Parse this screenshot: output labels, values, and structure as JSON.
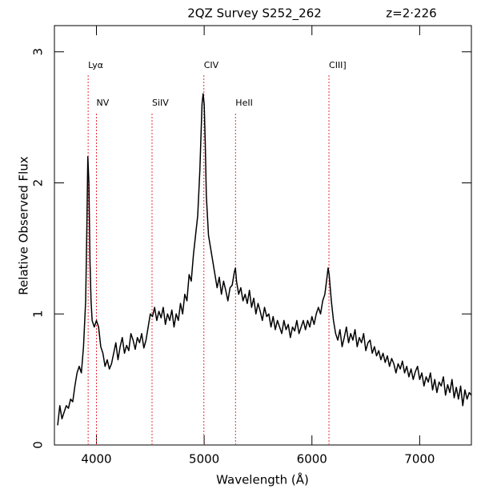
{
  "chart_data": {
    "type": "line",
    "title": "2QZ Survey S252_262",
    "subtitle": "z=2·226",
    "xlabel": "Wavelength (Å)",
    "ylabel": "Relative Observed Flux",
    "color": "#000000",
    "xlim": [
      3610,
      7480
    ],
    "ylim": [
      0,
      3.2
    ],
    "xticks": [
      4000,
      5000,
      6000,
      7000
    ],
    "yticks": [
      0,
      1,
      2,
      3
    ],
    "annotations": [
      {
        "label": "Lyα",
        "x": 3923,
        "row": "upper"
      },
      {
        "label": "NV",
        "x": 4000,
        "row": "lower"
      },
      {
        "label": "SiIV",
        "x": 4516,
        "row": "lower"
      },
      {
        "label": "CIV",
        "x": 4997,
        "row": "upper"
      },
      {
        "label": "HeII",
        "x": 5291,
        "row": "lower"
      },
      {
        "label": "CIII]",
        "x": 6158,
        "row": "upper"
      }
    ],
    "annotation_line_color": "#e8303a",
    "annotation_text_color": "#1010d0",
    "x": [
      3640,
      3660,
      3680,
      3700,
      3720,
      3740,
      3760,
      3780,
      3800,
      3820,
      3840,
      3860,
      3880,
      3900,
      3910,
      3920,
      3930,
      3940,
      3950,
      3960,
      3980,
      4000,
      4020,
      4040,
      4060,
      4080,
      4100,
      4120,
      4140,
      4160,
      4180,
      4200,
      4220,
      4240,
      4260,
      4280,
      4300,
      4320,
      4340,
      4360,
      4380,
      4400,
      4420,
      4440,
      4460,
      4480,
      4500,
      4520,
      4540,
      4560,
      4580,
      4600,
      4620,
      4640,
      4660,
      4680,
      4700,
      4720,
      4740,
      4760,
      4780,
      4800,
      4820,
      4840,
      4860,
      4880,
      4900,
      4920,
      4940,
      4960,
      4980,
      4990,
      5000,
      5010,
      5020,
      5040,
      5060,
      5080,
      5100,
      5120,
      5140,
      5160,
      5180,
      5200,
      5220,
      5240,
      5260,
      5280,
      5290,
      5300,
      5320,
      5340,
      5360,
      5380,
      5400,
      5420,
      5440,
      5460,
      5480,
      5500,
      5520,
      5540,
      5560,
      5580,
      5600,
      5620,
      5640,
      5660,
      5680,
      5700,
      5720,
      5740,
      5760,
      5780,
      5800,
      5820,
      5840,
      5860,
      5880,
      5900,
      5920,
      5940,
      5960,
      5980,
      6000,
      6020,
      6040,
      6060,
      6080,
      6100,
      6120,
      6140,
      6150,
      6160,
      6180,
      6200,
      6220,
      6240,
      6260,
      6280,
      6300,
      6320,
      6340,
      6360,
      6380,
      6400,
      6420,
      6440,
      6460,
      6480,
      6500,
      6520,
      6540,
      6560,
      6580,
      6600,
      6620,
      6640,
      6660,
      6680,
      6700,
      6720,
      6740,
      6760,
      6780,
      6800,
      6820,
      6840,
      6860,
      6880,
      6900,
      6920,
      6940,
      6960,
      6980,
      7000,
      7020,
      7040,
      7060,
      7080,
      7100,
      7120,
      7140,
      7160,
      7180,
      7200,
      7220,
      7240,
      7260,
      7280,
      7300,
      7320,
      7340,
      7360,
      7380,
      7400,
      7420,
      7440,
      7460,
      7480
    ],
    "values": [
      0.15,
      0.3,
      0.2,
      0.25,
      0.3,
      0.28,
      0.35,
      0.33,
      0.45,
      0.55,
      0.6,
      0.55,
      0.75,
      1.1,
      1.6,
      2.2,
      2.0,
      1.4,
      1.1,
      0.95,
      0.9,
      0.95,
      0.9,
      0.75,
      0.7,
      0.6,
      0.65,
      0.58,
      0.62,
      0.7,
      0.78,
      0.65,
      0.75,
      0.82,
      0.7,
      0.76,
      0.72,
      0.85,
      0.8,
      0.73,
      0.82,
      0.78,
      0.85,
      0.74,
      0.8,
      0.9,
      1.0,
      0.98,
      1.05,
      0.95,
      1.02,
      0.97,
      1.05,
      0.92,
      1.0,
      0.95,
      1.03,
      0.9,
      1.0,
      0.95,
      1.08,
      1.0,
      1.15,
      1.1,
      1.3,
      1.25,
      1.45,
      1.6,
      1.75,
      2.1,
      2.6,
      2.68,
      2.6,
      2.3,
      1.9,
      1.6,
      1.5,
      1.4,
      1.3,
      1.2,
      1.28,
      1.15,
      1.25,
      1.18,
      1.1,
      1.2,
      1.22,
      1.32,
      1.35,
      1.25,
      1.15,
      1.2,
      1.1,
      1.15,
      1.08,
      1.18,
      1.05,
      1.12,
      1.0,
      1.08,
      1.02,
      0.95,
      1.05,
      0.98,
      1.0,
      0.9,
      0.98,
      0.88,
      0.95,
      0.9,
      0.85,
      0.95,
      0.88,
      0.92,
      0.82,
      0.9,
      0.87,
      0.95,
      0.85,
      0.9,
      0.95,
      0.88,
      0.95,
      0.9,
      0.98,
      0.92,
      1.0,
      1.05,
      1.0,
      1.1,
      1.15,
      1.28,
      1.35,
      1.3,
      1.1,
      0.95,
      0.85,
      0.8,
      0.88,
      0.75,
      0.82,
      0.9,
      0.78,
      0.85,
      0.8,
      0.88,
      0.75,
      0.82,
      0.78,
      0.85,
      0.72,
      0.78,
      0.8,
      0.7,
      0.75,
      0.68,
      0.72,
      0.65,
      0.7,
      0.63,
      0.68,
      0.6,
      0.66,
      0.62,
      0.55,
      0.62,
      0.58,
      0.64,
      0.55,
      0.6,
      0.52,
      0.58,
      0.5,
      0.56,
      0.6,
      0.5,
      0.55,
      0.45,
      0.52,
      0.48,
      0.55,
      0.42,
      0.5,
      0.4,
      0.48,
      0.45,
      0.52,
      0.38,
      0.46,
      0.4,
      0.5,
      0.36,
      0.44,
      0.35,
      0.45,
      0.3,
      0.42,
      0.35,
      0.4,
      0.38
    ]
  }
}
